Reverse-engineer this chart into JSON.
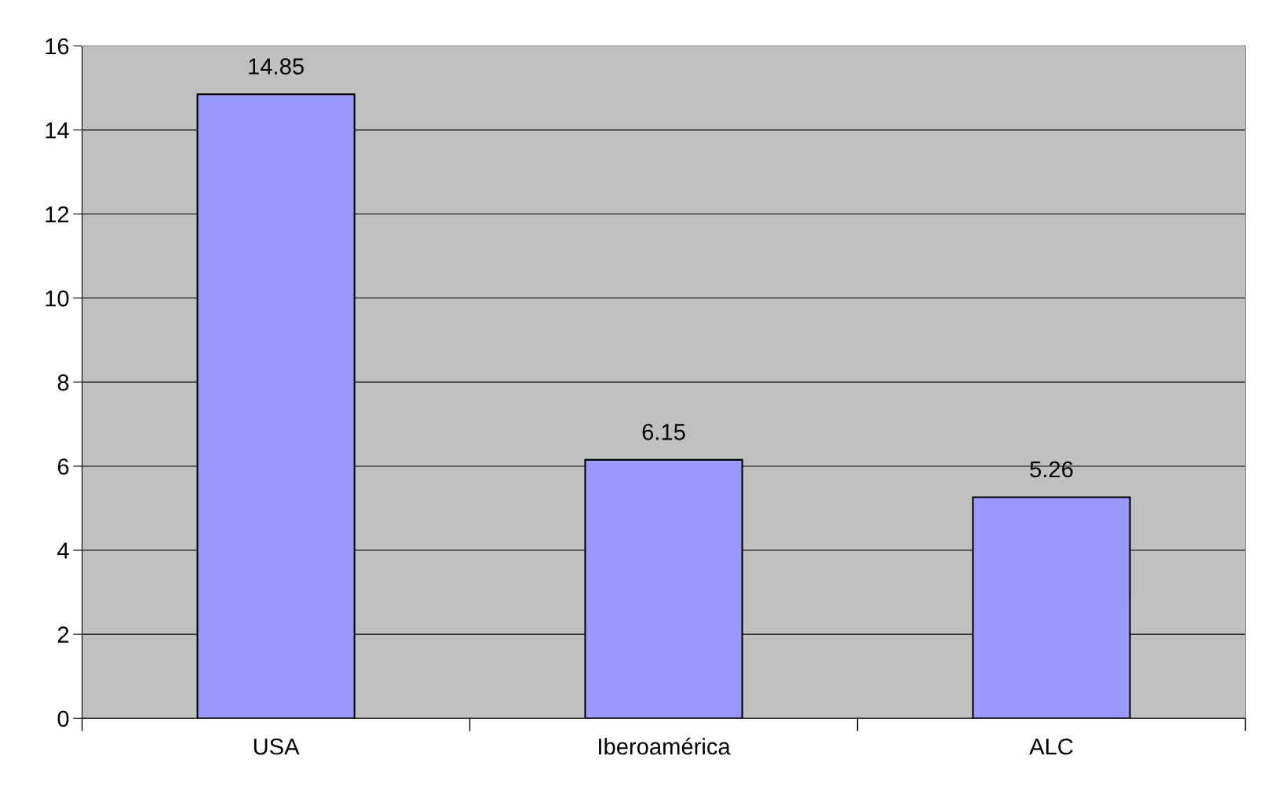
{
  "chart_data": {
    "type": "bar",
    "categories": [
      "USA",
      "Iberoamérica",
      "ALC"
    ],
    "values": [
      14.85,
      6.15,
      5.26
    ],
    "color": "#9999ff",
    "ylim": [
      0,
      16
    ],
    "yticks": [
      0,
      2,
      4,
      6,
      8,
      10,
      12,
      14,
      16
    ],
    "grid": "y",
    "data_labels": true
  }
}
